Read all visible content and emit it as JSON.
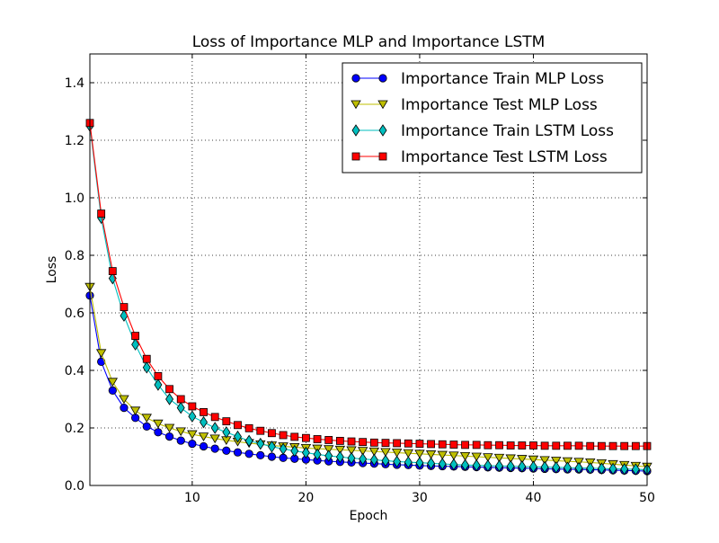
{
  "chart_data": {
    "type": "line",
    "title": "Loss of Importance MLP and Importance LSTM",
    "xlabel": "Epoch",
    "ylabel": "Loss",
    "xlim": [
      1,
      50
    ],
    "ylim": [
      0.0,
      1.5
    ],
    "xticks": [
      10,
      20,
      30,
      40,
      50
    ],
    "xtick_labels": [
      "10",
      "20",
      "30",
      "40",
      "50"
    ],
    "yticks": [
      0.0,
      0.2,
      0.4,
      0.6,
      0.8,
      1.0,
      1.2,
      1.4
    ],
    "ytick_labels": [
      "0.0",
      "0.2",
      "0.4",
      "0.6",
      "0.8",
      "1.0",
      "1.2",
      "1.4"
    ],
    "grid": true,
    "legend_position": "top-right",
    "x": [
      1,
      2,
      3,
      4,
      5,
      6,
      7,
      8,
      9,
      10,
      11,
      12,
      13,
      14,
      15,
      16,
      17,
      18,
      19,
      20,
      21,
      22,
      23,
      24,
      25,
      26,
      27,
      28,
      29,
      30,
      31,
      32,
      33,
      34,
      35,
      36,
      37,
      38,
      39,
      40,
      41,
      42,
      43,
      44,
      45,
      46,
      47,
      48,
      49,
      50
    ],
    "series": [
      {
        "name": "Importance Train MLP Loss",
        "color": "#0000ff",
        "marker": "circle",
        "values": [
          0.66,
          0.43,
          0.33,
          0.27,
          0.235,
          0.205,
          0.185,
          0.17,
          0.156,
          0.145,
          0.136,
          0.128,
          0.121,
          0.115,
          0.11,
          0.105,
          0.1,
          0.096,
          0.093,
          0.09,
          0.087,
          0.084,
          0.082,
          0.08,
          0.078,
          0.076,
          0.074,
          0.072,
          0.071,
          0.069,
          0.068,
          0.067,
          0.066,
          0.065,
          0.064,
          0.063,
          0.062,
          0.061,
          0.06,
          0.059,
          0.058,
          0.057,
          0.056,
          0.056,
          0.055,
          0.054,
          0.053,
          0.052,
          0.051,
          0.05
        ]
      },
      {
        "name": "Importance Test MLP Loss",
        "color": "#bfbf00",
        "marker": "triangle-down",
        "values": [
          0.69,
          0.46,
          0.36,
          0.3,
          0.26,
          0.235,
          0.215,
          0.2,
          0.188,
          0.178,
          0.17,
          0.163,
          0.157,
          0.152,
          0.147,
          0.143,
          0.139,
          0.136,
          0.133,
          0.13,
          0.128,
          0.126,
          0.124,
          0.122,
          0.12,
          0.118,
          0.116,
          0.114,
          0.112,
          0.11,
          0.108,
          0.106,
          0.104,
          0.102,
          0.1,
          0.098,
          0.096,
          0.094,
          0.092,
          0.09,
          0.088,
          0.086,
          0.084,
          0.082,
          0.08,
          0.077,
          0.074,
          0.071,
          0.068,
          0.065
        ]
      },
      {
        "name": "Importance Train LSTM Loss",
        "color": "#00bfbf",
        "marker": "diamond",
        "values": [
          1.25,
          0.93,
          0.72,
          0.59,
          0.49,
          0.41,
          0.35,
          0.3,
          0.27,
          0.24,
          0.22,
          0.2,
          0.185,
          0.17,
          0.155,
          0.145,
          0.135,
          0.127,
          0.12,
          0.114,
          0.108,
          0.103,
          0.099,
          0.095,
          0.092,
          0.089,
          0.086,
          0.083,
          0.081,
          0.079,
          0.077,
          0.075,
          0.073,
          0.071,
          0.07,
          0.069,
          0.068,
          0.067,
          0.066,
          0.065,
          0.064,
          0.063,
          0.062,
          0.061,
          0.06,
          0.059,
          0.058,
          0.057,
          0.056,
          0.055
        ]
      },
      {
        "name": "Importance Test LSTM Loss",
        "color": "#ff0000",
        "marker": "square",
        "values": [
          1.26,
          0.945,
          0.745,
          0.62,
          0.52,
          0.44,
          0.38,
          0.335,
          0.3,
          0.275,
          0.255,
          0.238,
          0.223,
          0.21,
          0.199,
          0.19,
          0.182,
          0.175,
          0.169,
          0.165,
          0.161,
          0.158,
          0.155,
          0.153,
          0.151,
          0.149,
          0.148,
          0.147,
          0.146,
          0.145,
          0.144,
          0.143,
          0.142,
          0.141,
          0.141,
          0.14,
          0.14,
          0.139,
          0.139,
          0.139,
          0.138,
          0.138,
          0.138,
          0.138,
          0.137,
          0.137,
          0.137,
          0.137,
          0.137,
          0.137
        ]
      }
    ]
  }
}
